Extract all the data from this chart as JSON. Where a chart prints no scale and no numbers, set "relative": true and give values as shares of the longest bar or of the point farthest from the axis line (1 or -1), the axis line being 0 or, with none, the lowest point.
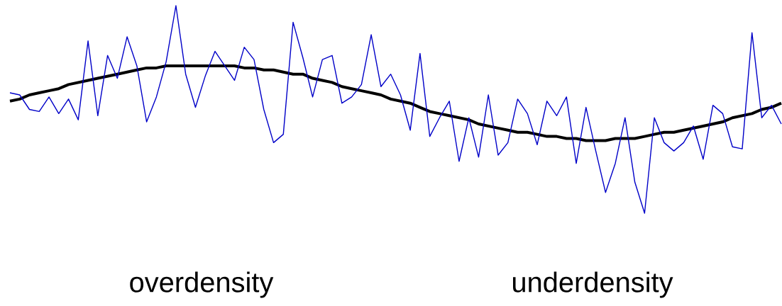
{
  "chart_data": {
    "type": "line",
    "relative": true,
    "categories": [
      null,
      null,
      null,
      null,
      null,
      null,
      null,
      null,
      null,
      null,
      null,
      null,
      null,
      null,
      null,
      null,
      null,
      null,
      null,
      null,
      null,
      null,
      null,
      null,
      null,
      null,
      null,
      null,
      null,
      null,
      null,
      null,
      null,
      null,
      null,
      null,
      null,
      null,
      null,
      null,
      null,
      null,
      null,
      null,
      null,
      null,
      null,
      null,
      null,
      null,
      null,
      null,
      null,
      null,
      null,
      null,
      null,
      null,
      null,
      null,
      null,
      null,
      null,
      null,
      null,
      null,
      null,
      null,
      null,
      null,
      null,
      null,
      null,
      null,
      null,
      null,
      null,
      null,
      null,
      null
    ],
    "series": [
      {
        "color": "#000000",
        "values": [
          0.54,
          0.55,
          0.57,
          0.58,
          0.59,
          0.6,
          0.62,
          0.63,
          0.64,
          0.65,
          0.66,
          0.67,
          0.68,
          0.69,
          0.7,
          0.7,
          0.71,
          0.71,
          0.71,
          0.71,
          0.71,
          0.71,
          0.71,
          0.71,
          0.7,
          0.7,
          0.69,
          0.69,
          0.68,
          0.67,
          0.67,
          0.65,
          0.64,
          0.63,
          0.61,
          0.6,
          0.59,
          0.58,
          0.57,
          0.55,
          0.54,
          0.53,
          0.51,
          0.49,
          0.48,
          0.47,
          0.46,
          0.45,
          0.43,
          0.42,
          0.41,
          0.4,
          0.39,
          0.39,
          0.38,
          0.37,
          0.37,
          0.36,
          0.36,
          0.35,
          0.35,
          0.35,
          0.36,
          0.36,
          0.36,
          0.37,
          0.38,
          0.39,
          0.39,
          0.4,
          0.41,
          0.42,
          0.43,
          0.44,
          0.46,
          0.47,
          0.48,
          0.5,
          0.51,
          0.53
        ]
      },
      {
        "color": "#0000c8",
        "values": [
          0.58,
          0.57,
          0.5,
          0.49,
          0.56,
          0.48,
          0.55,
          0.45,
          0.83,
          0.47,
          0.76,
          0.65,
          0.85,
          0.71,
          0.44,
          0.56,
          0.73,
          1.0,
          0.67,
          0.51,
          0.66,
          0.78,
          0.71,
          0.64,
          0.8,
          0.74,
          0.5,
          0.34,
          0.38,
          0.92,
          0.75,
          0.56,
          0.74,
          0.76,
          0.53,
          0.56,
          0.62,
          0.86,
          0.61,
          0.67,
          0.57,
          0.4,
          0.77,
          0.37,
          0.46,
          0.54,
          0.25,
          0.46,
          0.27,
          0.57,
          0.28,
          0.34,
          0.55,
          0.48,
          0.33,
          0.54,
          0.47,
          0.56,
          0.24,
          0.51,
          0.3,
          0.1,
          0.24,
          0.46,
          0.15,
          0.0,
          0.46,
          0.34,
          0.3,
          0.34,
          0.42,
          0.26,
          0.52,
          0.48,
          0.32,
          0.31,
          0.87,
          0.46,
          0.52,
          0.43
        ]
      }
    ],
    "annotations": [
      "overdensity",
      "underdensity"
    ]
  }
}
